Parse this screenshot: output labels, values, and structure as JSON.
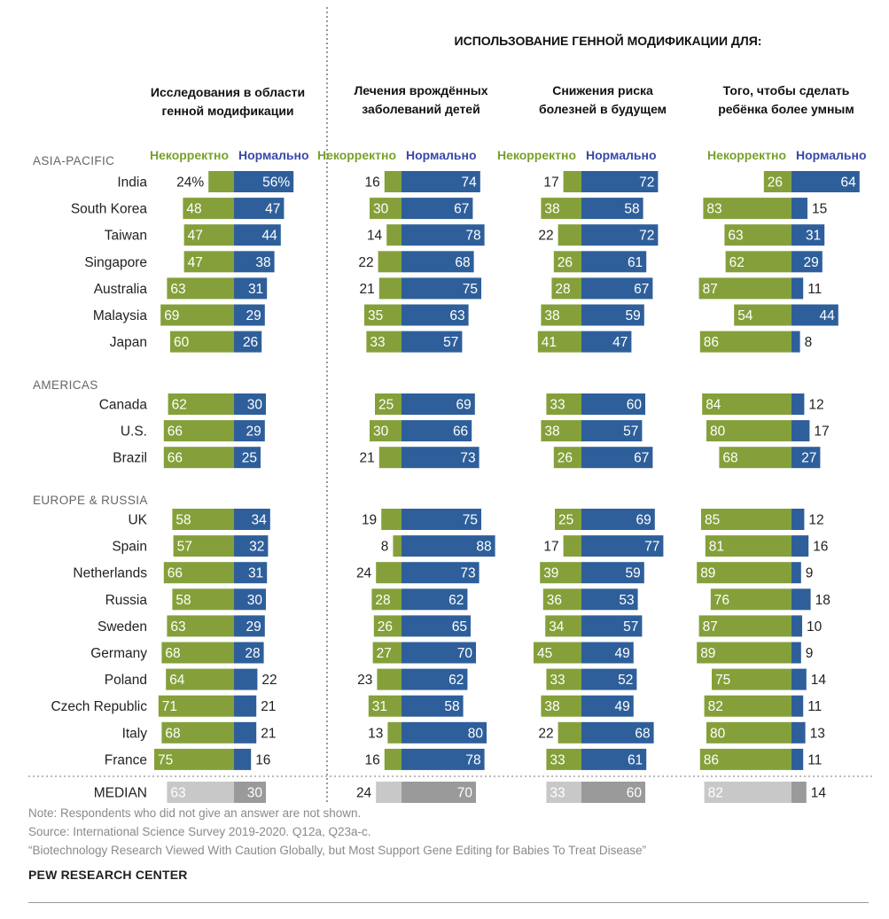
{
  "colors": {
    "incorrect": "#85a03a",
    "normal": "#2e5f9b",
    "incorrect_label": "#76a22b",
    "normal_label": "#3a48a8",
    "region": "#666666",
    "median_light": "#c8c8c8",
    "median_dark": "#9a9a9a"
  },
  "header": {
    "usage_title": "ИСПОЛЬЗОВАНИЕ ГЕННОЙ МОДИФИКАЦИИ ДЛЯ:",
    "col_titles": [
      [
        "Исследования в области",
        "генной модификации"
      ],
      [
        "Лечения врождённых",
        "заболеваний детей"
      ],
      [
        "Снижения риска",
        "болезней в будущем"
      ],
      [
        "Того, чтобы сделать",
        "ребёнка более умным"
      ]
    ],
    "legend_incorrect": "Некорректно",
    "legend_normal": "Нормально"
  },
  "chart_data": {
    "type": "bar",
    "orientation": "horizontal diverging",
    "series_names": [
      "Некорректно",
      "Нормально"
    ],
    "panels": [
      "Исследования в области генной модификации",
      "Лечения врождённых заболеваний детей",
      "Снижения риска болезней в будущем",
      "Того, чтобы сделать ребёнка более умным"
    ],
    "groups": [
      {
        "name": "ASIA-PACIFIC",
        "rows": [
          {
            "country": "India",
            "values": [
              [
                24,
                56
              ],
              [
                16,
                74
              ],
              [
                17,
                72
              ],
              [
                26,
                64
              ]
            ]
          },
          {
            "country": "South Korea",
            "values": [
              [
                48,
                47
              ],
              [
                30,
                67
              ],
              [
                38,
                58
              ],
              [
                83,
                15
              ]
            ]
          },
          {
            "country": "Taiwan",
            "values": [
              [
                47,
                44
              ],
              [
                14,
                78
              ],
              [
                22,
                72
              ],
              [
                63,
                31
              ]
            ]
          },
          {
            "country": "Singapore",
            "values": [
              [
                47,
                38
              ],
              [
                22,
                68
              ],
              [
                26,
                61
              ],
              [
                62,
                29
              ]
            ]
          },
          {
            "country": "Australia",
            "values": [
              [
                63,
                31
              ],
              [
                21,
                75
              ],
              [
                28,
                67
              ],
              [
                87,
                11
              ]
            ]
          },
          {
            "country": "Malaysia",
            "values": [
              [
                69,
                29
              ],
              [
                35,
                63
              ],
              [
                38,
                59
              ],
              [
                54,
                44
              ]
            ]
          },
          {
            "country": "Japan",
            "values": [
              [
                60,
                26
              ],
              [
                33,
                57
              ],
              [
                41,
                47
              ],
              [
                86,
                8
              ]
            ]
          }
        ]
      },
      {
        "name": "AMERICAS",
        "rows": [
          {
            "country": "Canada",
            "values": [
              [
                62,
                30
              ],
              [
                25,
                69
              ],
              [
                33,
                60
              ],
              [
                84,
                12
              ]
            ]
          },
          {
            "country": "U.S.",
            "values": [
              [
                66,
                29
              ],
              [
                30,
                66
              ],
              [
                38,
                57
              ],
              [
                80,
                17
              ]
            ]
          },
          {
            "country": "Brazil",
            "values": [
              [
                66,
                25
              ],
              [
                21,
                73
              ],
              [
                26,
                67
              ],
              [
                68,
                27
              ]
            ]
          }
        ]
      },
      {
        "name": "EUROPE & RUSSIA",
        "rows": [
          {
            "country": "UK",
            "values": [
              [
                58,
                34
              ],
              [
                19,
                75
              ],
              [
                25,
                69
              ],
              [
                85,
                12
              ]
            ]
          },
          {
            "country": "Spain",
            "values": [
              [
                57,
                32
              ],
              [
                8,
                88
              ],
              [
                17,
                77
              ],
              [
                81,
                16
              ]
            ]
          },
          {
            "country": "Netherlands",
            "values": [
              [
                66,
                31
              ],
              [
                24,
                73
              ],
              [
                39,
                59
              ],
              [
                89,
                9
              ]
            ]
          },
          {
            "country": "Russia",
            "values": [
              [
                58,
                30
              ],
              [
                28,
                62
              ],
              [
                36,
                53
              ],
              [
                76,
                18
              ]
            ]
          },
          {
            "country": "Sweden",
            "values": [
              [
                63,
                29
              ],
              [
                26,
                65
              ],
              [
                34,
                57
              ],
              [
                87,
                10
              ]
            ]
          },
          {
            "country": "Germany",
            "values": [
              [
                68,
                28
              ],
              [
                27,
                70
              ],
              [
                45,
                49
              ],
              [
                89,
                9
              ]
            ]
          },
          {
            "country": "Poland",
            "values": [
              [
                64,
                22
              ],
              [
                23,
                62
              ],
              [
                33,
                52
              ],
              [
                75,
                14
              ]
            ]
          },
          {
            "country": "Czech Republic",
            "values": [
              [
                71,
                21
              ],
              [
                31,
                58
              ],
              [
                38,
                49
              ],
              [
                82,
                11
              ]
            ]
          },
          {
            "country": "Italy",
            "values": [
              [
                68,
                21
              ],
              [
                13,
                80
              ],
              [
                22,
                68
              ],
              [
                80,
                13
              ]
            ]
          },
          {
            "country": "France",
            "values": [
              [
                75,
                16
              ],
              [
                16,
                78
              ],
              [
                33,
                61
              ],
              [
                86,
                11
              ]
            ]
          }
        ]
      }
    ],
    "median": {
      "label": "MEDIAN",
      "values": [
        [
          63,
          30
        ],
        [
          24,
          70
        ],
        [
          33,
          60
        ],
        [
          82,
          14
        ]
      ]
    },
    "first_row_percent_suffix": true
  },
  "footer": {
    "note": "Note: Respondents who did not give an answer are not shown.",
    "source": "Source: International Science Survey 2019-2020. Q12a, Q23a-c.",
    "report": "“Biotechnology Research Viewed With Caution Globally, but Most Support Gene Editing for Babies To Treat Disease”",
    "brand": "PEW RESEARCH CENTER"
  }
}
